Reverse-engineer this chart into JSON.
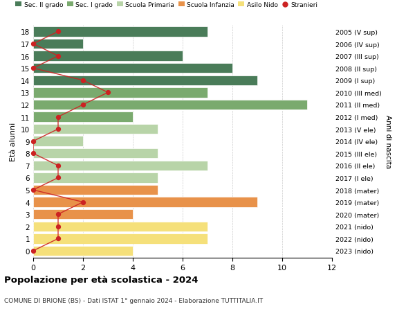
{
  "ages": [
    18,
    17,
    16,
    15,
    14,
    13,
    12,
    11,
    10,
    9,
    8,
    7,
    6,
    5,
    4,
    3,
    2,
    1,
    0
  ],
  "right_labels": [
    "2005 (V sup)",
    "2006 (IV sup)",
    "2007 (III sup)",
    "2008 (II sup)",
    "2009 (I sup)",
    "2010 (III med)",
    "2011 (II med)",
    "2012 (I med)",
    "2013 (V ele)",
    "2014 (IV ele)",
    "2015 (III ele)",
    "2016 (II ele)",
    "2017 (I ele)",
    "2018 (mater)",
    "2019 (mater)",
    "2020 (mater)",
    "2021 (nido)",
    "2022 (nido)",
    "2023 (nido)"
  ],
  "bar_values": [
    7,
    2,
    6,
    8,
    9,
    7,
    11,
    4,
    5,
    2,
    5,
    7,
    5,
    5,
    9,
    4,
    7,
    7,
    4
  ],
  "bar_colors": [
    "#4a7c59",
    "#4a7c59",
    "#4a7c59",
    "#4a7c59",
    "#4a7c59",
    "#7aaa6e",
    "#7aaa6e",
    "#7aaa6e",
    "#b8d4a8",
    "#b8d4a8",
    "#b8d4a8",
    "#b8d4a8",
    "#b8d4a8",
    "#e8924a",
    "#e8924a",
    "#e8924a",
    "#f5e07a",
    "#f5e07a",
    "#f5e07a"
  ],
  "stranieri_values": [
    1,
    0,
    1,
    0,
    2,
    3,
    2,
    1,
    1,
    0,
    0,
    1,
    1,
    0,
    2,
    1,
    1,
    1,
    0
  ],
  "legend_labels": [
    "Sec. II grado",
    "Sec. I grado",
    "Scuola Primaria",
    "Scuola Infanzia",
    "Asilo Nido",
    "Stranieri"
  ],
  "legend_colors": [
    "#4a7c59",
    "#7aaa6e",
    "#b8d4a8",
    "#e8924a",
    "#f5e07a",
    "#cc2222"
  ],
  "ylabel": "Età alunni",
  "right_ylabel": "Anni di nascita",
  "title": "Popolazione per età scolastica - 2024",
  "subtitle": "COMUNE DI BRIONE (BS) - Dati ISTAT 1° gennaio 2024 - Elaborazione TUTTITALIA.IT",
  "xlim": [
    0,
    12
  ],
  "background_color": "#ffffff",
  "grid_color": "#cccccc",
  "stranieri_color": "#cc2222",
  "stranieri_line_color": "#cc2222"
}
